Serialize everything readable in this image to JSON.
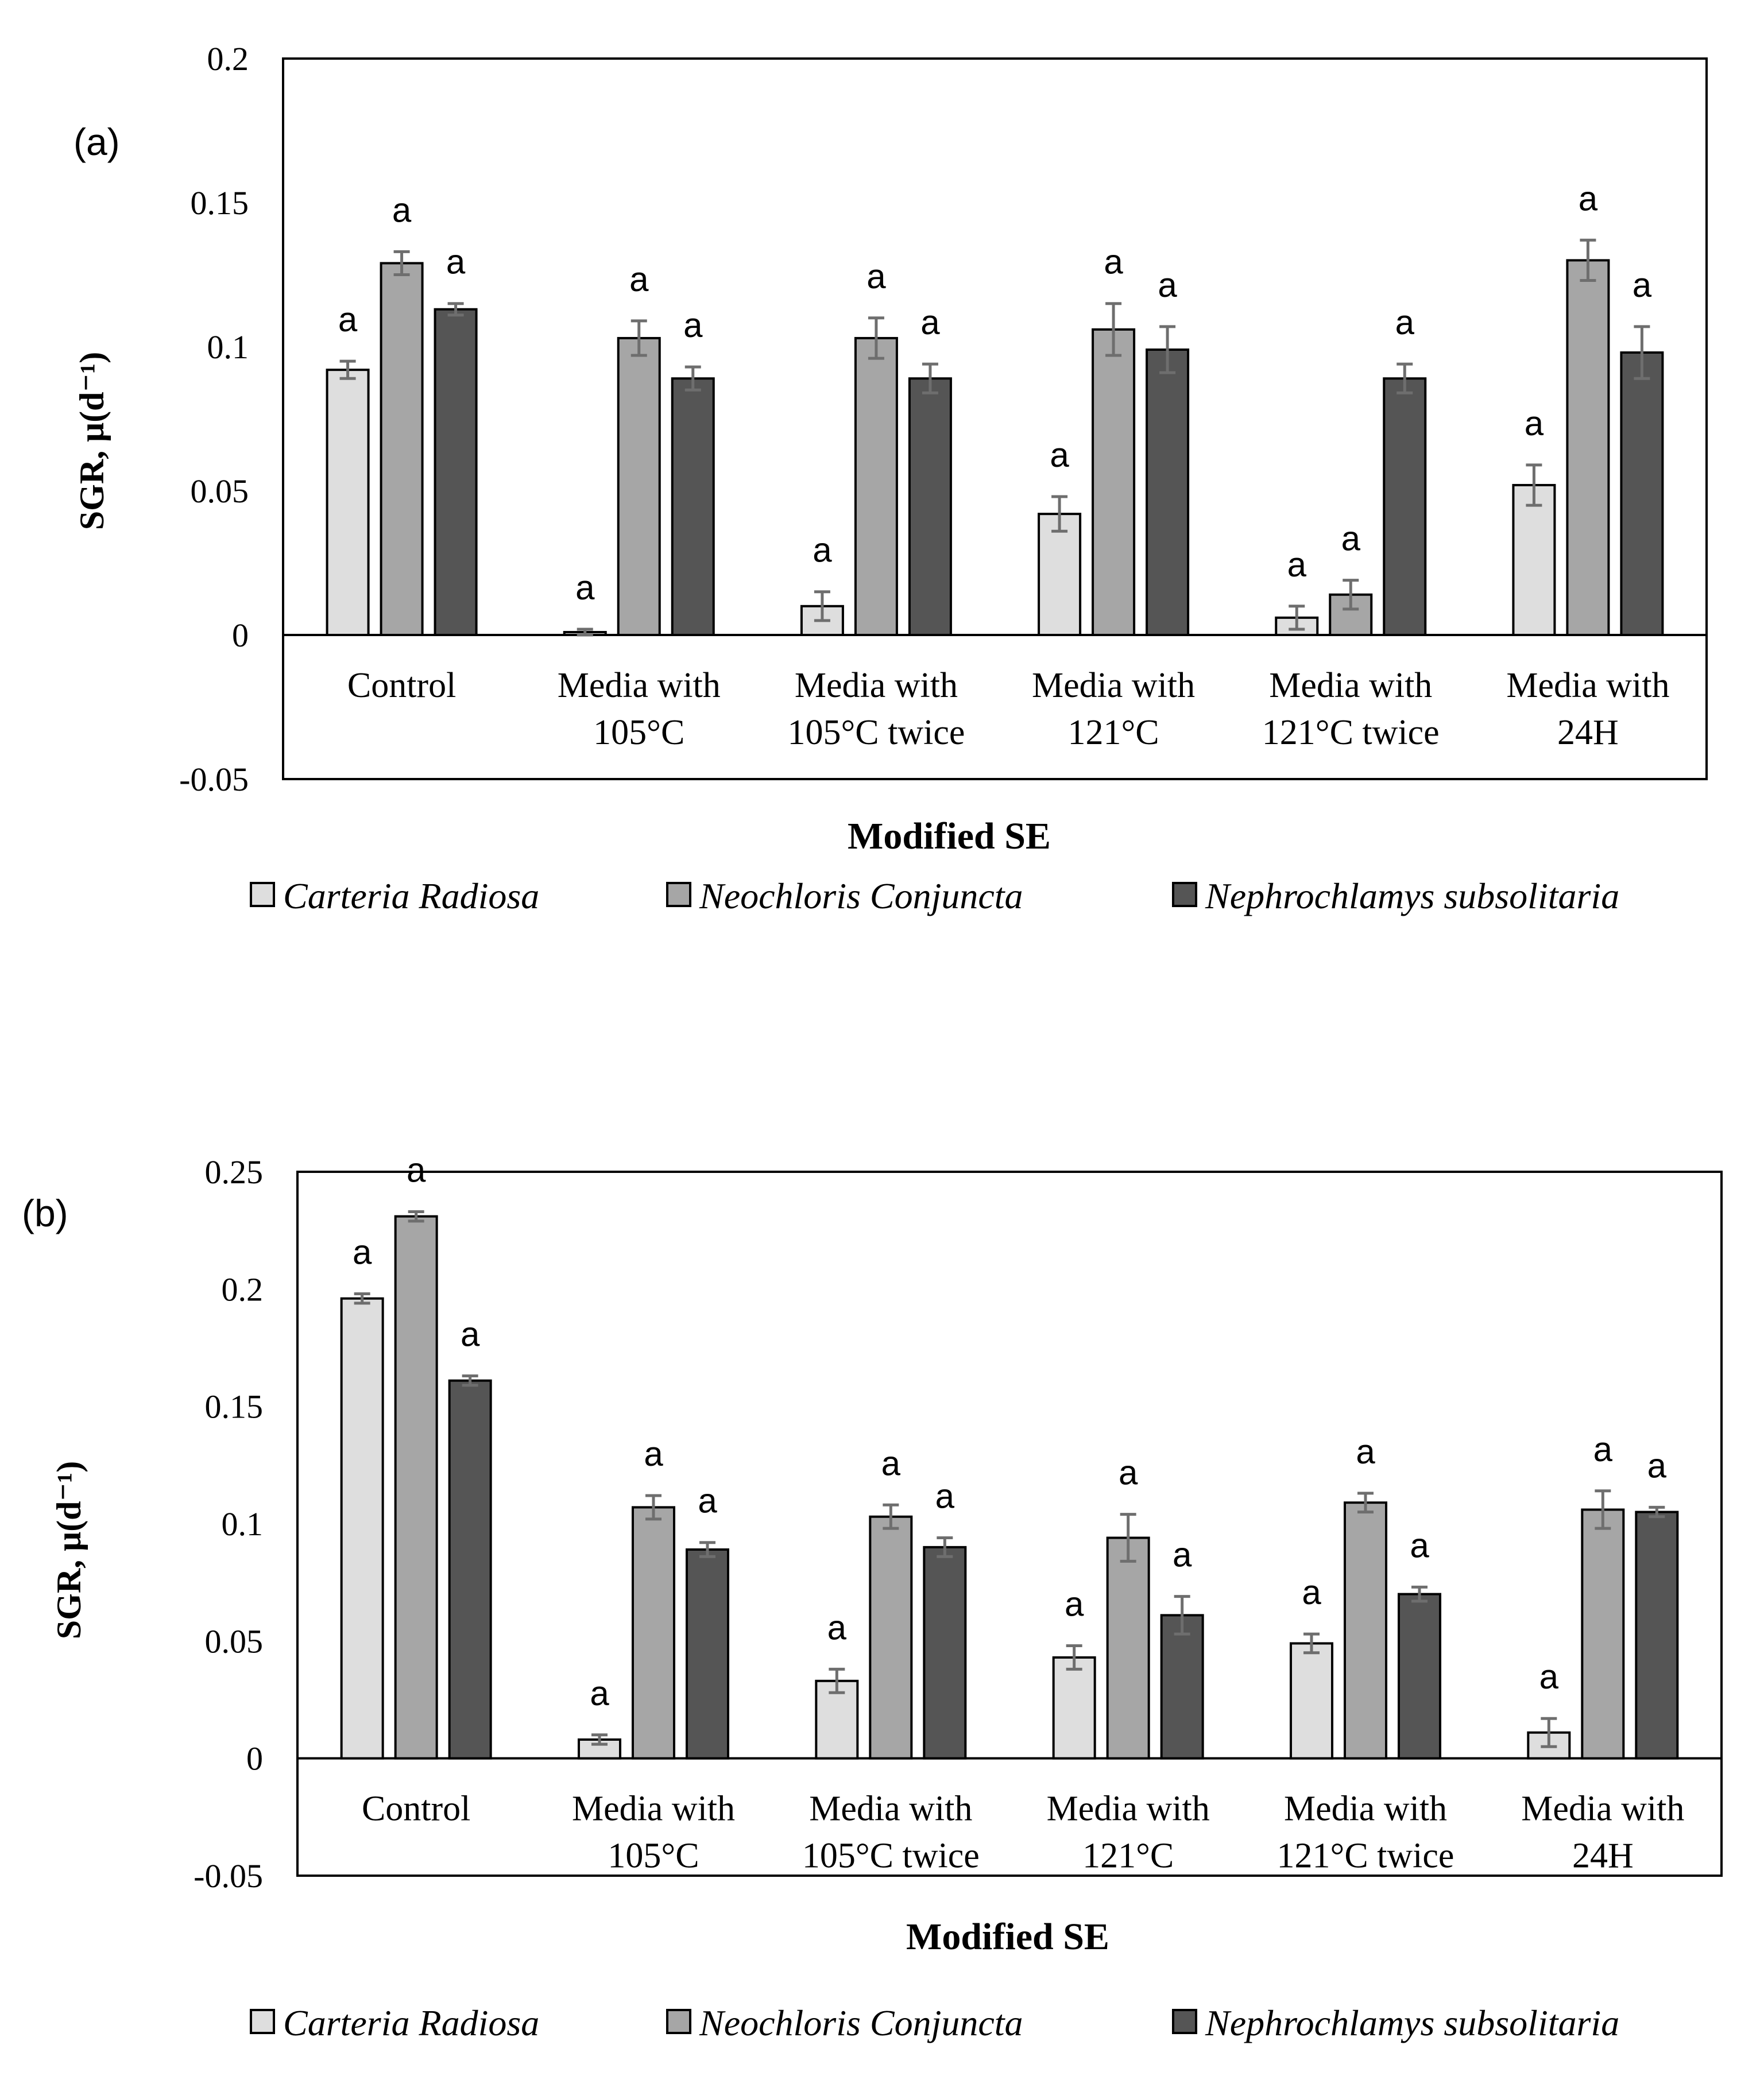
{
  "colors": {
    "Carteria Radiosa": "#dedede",
    "Neochloris Conjuncta": "#a6a6a6",
    "Nephrochlamys subsolitaria": "#555555",
    "error_bar": "#6e6e6e"
  },
  "chart_data": [
    {
      "panel_label": "(a)",
      "type": "bar",
      "xlabel": "Modified SE",
      "ylabel": "SGR, μ(d⁻¹)",
      "ylim": [
        -0.05,
        0.2
      ],
      "yticks": [
        "0.2",
        "0.15",
        "0.1",
        "0.05",
        "0",
        "-0.05"
      ],
      "categories": [
        [
          "Control"
        ],
        [
          "Media with",
          "105°C"
        ],
        [
          "Media with",
          "105°C twice"
        ],
        [
          "Media with",
          "121°C"
        ],
        [
          "Media with",
          "121°C twice"
        ],
        [
          "Media with",
          "24H"
        ]
      ],
      "series": [
        {
          "name": "Carteria Radiosa",
          "values": [
            0.092,
            0.001,
            0.01,
            0.042,
            0.006,
            0.052
          ],
          "errors": [
            0.003,
            0.001,
            0.005,
            0.006,
            0.004,
            0.007
          ],
          "labels": [
            "a",
            "a",
            "a",
            "a",
            "a",
            "a"
          ]
        },
        {
          "name": "Neochloris Conjuncta",
          "values": [
            0.129,
            0.103,
            0.103,
            0.106,
            0.014,
            0.13
          ],
          "errors": [
            0.004,
            0.006,
            0.007,
            0.009,
            0.005,
            0.007
          ],
          "labels": [
            "a",
            "a",
            "a",
            "a",
            "a",
            "a"
          ]
        },
        {
          "name": "Nephrochlamys subsolitaria",
          "values": [
            0.113,
            0.089,
            0.089,
            0.099,
            0.089,
            0.098
          ],
          "errors": [
            0.002,
            0.004,
            0.005,
            0.008,
            0.005,
            0.009
          ],
          "labels": [
            "a",
            "a",
            "a",
            "a",
            "a",
            "a"
          ]
        }
      ],
      "grid": false,
      "legend_position": "bottom"
    },
    {
      "panel_label": "(b)",
      "type": "bar",
      "xlabel": "Modified SE",
      "ylabel": "SGR, μ(d⁻¹)",
      "ylim": [
        -0.05,
        0.25
      ],
      "yticks": [
        "0.25",
        "0.2",
        "0.15",
        "0.1",
        "0.05",
        "0",
        "-0.05"
      ],
      "categories": [
        [
          "Control"
        ],
        [
          "Media with",
          "105°C"
        ],
        [
          "Media with",
          "105°C twice"
        ],
        [
          "Media with",
          "121°C"
        ],
        [
          "Media with",
          "121°C twice"
        ],
        [
          "Media with",
          "24H"
        ]
      ],
      "series": [
        {
          "name": "Carteria Radiosa",
          "values": [
            0.196,
            0.008,
            0.033,
            0.043,
            0.049,
            0.011
          ],
          "errors": [
            0.002,
            0.002,
            0.005,
            0.005,
            0.004,
            0.006
          ],
          "labels": [
            "a",
            "a",
            "a",
            "a",
            "a",
            "a"
          ]
        },
        {
          "name": "Neochloris Conjuncta",
          "values": [
            0.231,
            0.107,
            0.103,
            0.094,
            0.109,
            0.106
          ],
          "errors": [
            0.002,
            0.005,
            0.005,
            0.01,
            0.004,
            0.008
          ],
          "labels": [
            "a",
            "a",
            "a",
            "a",
            "a",
            "a"
          ]
        },
        {
          "name": "Nephrochlamys subsolitaria",
          "values": [
            0.161,
            0.089,
            0.09,
            0.061,
            0.07,
            0.105
          ],
          "errors": [
            0.002,
            0.003,
            0.004,
            0.008,
            0.003,
            0.002
          ],
          "labels": [
            "a",
            "a",
            "a",
            "a",
            "a",
            "a"
          ]
        }
      ],
      "grid": false,
      "legend_position": "bottom"
    }
  ]
}
